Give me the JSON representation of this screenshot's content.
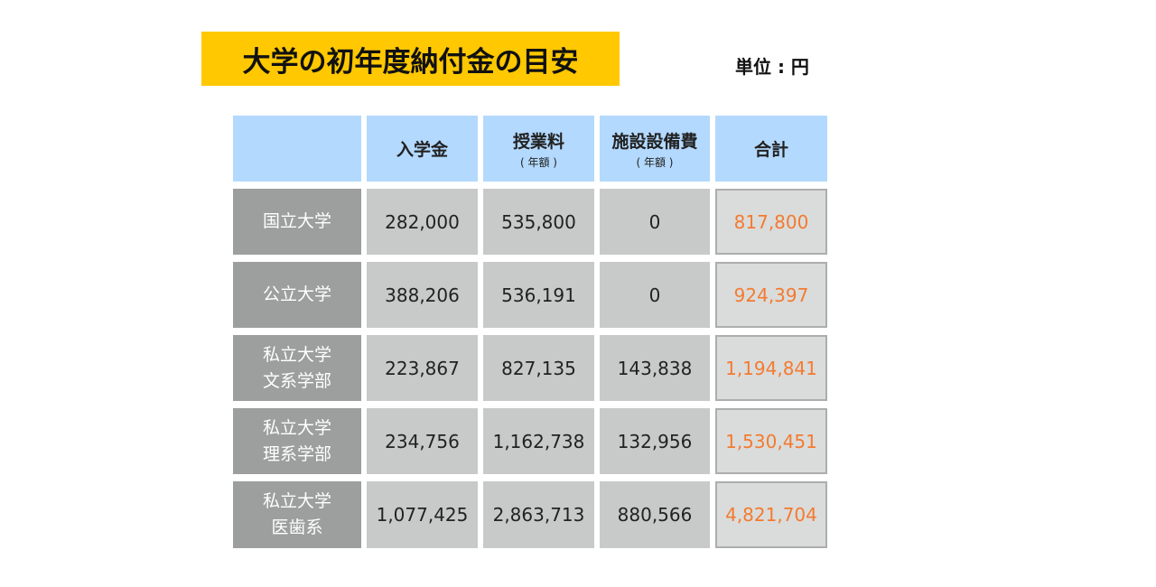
{
  "title": "大学の初年度納付金の目安",
  "unit": "単位 : 円",
  "headers": [
    {
      "label": "",
      "sub": ""
    },
    {
      "label": "入学金",
      "sub": ""
    },
    {
      "label": "授業料",
      "sub": "( 年額 )"
    },
    {
      "label": "施設設備費",
      "sub": "( 年額 )"
    },
    {
      "label": "合計",
      "sub": ""
    }
  ],
  "rows": [
    {
      "label1": "国立大学",
      "label2": "",
      "values": [
        "282,000",
        "535,800",
        "0"
      ],
      "total": "817,800"
    },
    {
      "label1": "公立大学",
      "label2": "",
      "values": [
        "388,206",
        "536,191",
        "0"
      ],
      "total": "924,397"
    },
    {
      "label1": "私立大学",
      "label2": "文系学部",
      "values": [
        "223,867",
        "827,135",
        "143,838"
      ],
      "total": "1,194,841"
    },
    {
      "label1": "私立大学",
      "label2": "理系学部",
      "values": [
        "234,756",
        "1,162,738",
        "132,956"
      ],
      "total": "1,530,451"
    },
    {
      "label1": "私立大学",
      "label2": "医歯系",
      "values": [
        "1,077,425",
        "2,863,713",
        "880,566"
      ],
      "total": "4,821,704"
    }
  ],
  "colors": {
    "title_bg": "#ffc800",
    "header_bg": "#b3d9fe",
    "total_text": "#f47a30"
  }
}
